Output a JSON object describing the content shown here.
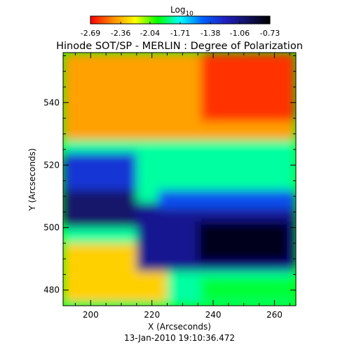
{
  "chart_data": {
    "type": "heatmap",
    "title": "Hinode SOT/SP - MERLIN : Degree of Polarization",
    "xlabel": "X (Arcseconds)",
    "ylabel": "Y (Arcseconds)",
    "footer": "13-Jan-2010 19:10:36.472",
    "colorbar": {
      "title": "Log",
      "title_subscript": "10",
      "tick_labels": [
        "-2.69",
        "-2.36",
        "-2.04",
        "-1.71",
        "-1.38",
        "-1.06",
        "-0.73"
      ],
      "range": [
        -2.69,
        -0.73
      ],
      "colors": [
        "#ff0000",
        "#ff8c00",
        "#ffff00",
        "#00ff00",
        "#00ffff",
        "#0060ff",
        "#2020c0",
        "#101060",
        "#000000"
      ]
    },
    "xlim": [
      191,
      267
    ],
    "ylim": [
      475,
      556
    ],
    "x_ticks": [
      200,
      220,
      240,
      260
    ],
    "x_tick_labels": [
      "200",
      "220",
      "240",
      "260"
    ],
    "y_ticks": [
      480,
      500,
      520,
      540
    ],
    "y_tick_labels": [
      "480",
      "500",
      "520",
      "540"
    ],
    "grid": false,
    "regions": [
      {
        "x": [
          191,
          267
        ],
        "y": [
          475,
          556
        ],
        "value": -1.8
      },
      {
        "x": [
          191,
          267
        ],
        "y": [
          528,
          556
        ],
        "value": -2.4
      },
      {
        "x": [
          236,
          267
        ],
        "y": [
          534,
          556
        ],
        "value": -2.6
      },
      {
        "x": [
          191,
          215
        ],
        "y": [
          512,
          524
        ],
        "value": -1.3
      },
      {
        "x": [
          191,
          215
        ],
        "y": [
          500,
          512
        ],
        "value": -1.0
      },
      {
        "x": [
          191,
          225
        ],
        "y": [
          476,
          495
        ],
        "value": -2.3
      },
      {
        "x": [
          215,
          267
        ],
        "y": [
          486,
          508
        ],
        "value": -1.1
      },
      {
        "x": [
          222,
          267
        ],
        "y": [
          506,
          512
        ],
        "value": -1.4
      },
      {
        "x": [
          235,
          265
        ],
        "y": [
          489,
          502
        ],
        "value": -0.8
      },
      {
        "x": [
          236,
          267
        ],
        "y": [
          476,
          484
        ],
        "value": -1.9
      }
    ]
  }
}
